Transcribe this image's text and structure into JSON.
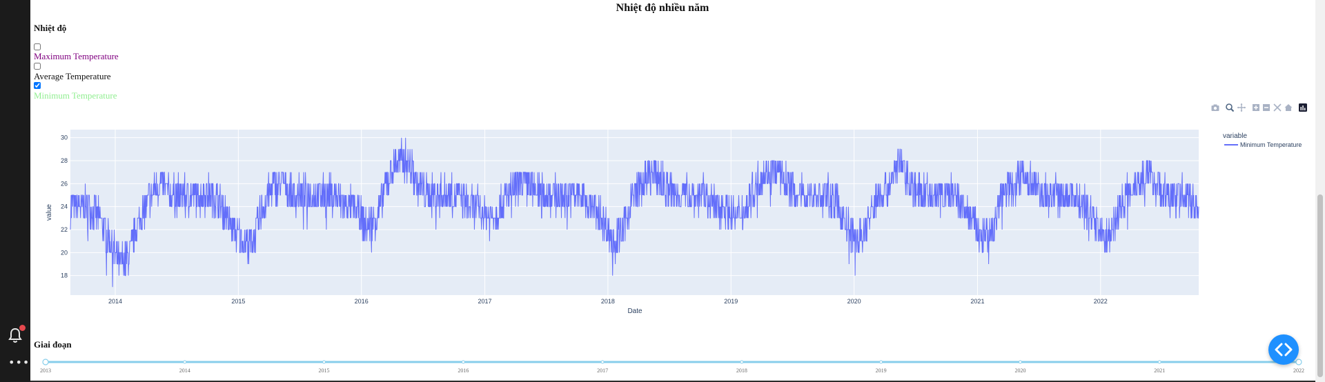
{
  "page": {
    "title": "Nhiệt độ nhiều năm"
  },
  "filters": {
    "heading": "Nhiệt độ",
    "options": [
      {
        "label": "Maximum Temperature",
        "checked": false,
        "color": "#800080"
      },
      {
        "label": "Average Temperature",
        "checked": false,
        "color": "#111111"
      },
      {
        "label": "Minimum Temperature",
        "checked": true,
        "color": "#90ee90"
      }
    ]
  },
  "modebar": {
    "icons": [
      "camera-icon",
      "zoom-icon",
      "pan-icon",
      "zoom-in-icon",
      "zoom-out-icon",
      "autoscale-icon",
      "reset-axes-icon",
      "plotly-logo-icon"
    ]
  },
  "chart_data": {
    "type": "line",
    "xlabel": "Date",
    "ylabel": "value",
    "xlim": [
      "2013-08-21",
      "2022-10-19"
    ],
    "ylim": [
      16.3,
      30.7
    ],
    "x_ticks": [
      "2014",
      "2015",
      "2016",
      "2017",
      "2018",
      "2019",
      "2020",
      "2021",
      "2022"
    ],
    "y_ticks": [
      18,
      20,
      22,
      24,
      26,
      28,
      30
    ],
    "legend": {
      "title": "variable",
      "placement": "right"
    },
    "grid": true,
    "series": [
      {
        "name": "Minimum Temperature",
        "color": "#636efa",
        "x_start": "2013-08-21",
        "x_end": "2022-10-19",
        "approx_monthly": [
          [
            "2013-09",
            24
          ],
          [
            "2013-10",
            24
          ],
          [
            "2013-11",
            23
          ],
          [
            "2013-12",
            21
          ],
          [
            "2014-01",
            19
          ],
          [
            "2014-02",
            20
          ],
          [
            "2014-03",
            23
          ],
          [
            "2014-04",
            25
          ],
          [
            "2014-05",
            26
          ],
          [
            "2014-06",
            25
          ],
          [
            "2014-07",
            25
          ],
          [
            "2014-08",
            25
          ],
          [
            "2014-09",
            25
          ],
          [
            "2014-10",
            25
          ],
          [
            "2014-11",
            24
          ],
          [
            "2014-12",
            22
          ],
          [
            "2015-01",
            21
          ],
          [
            "2015-02",
            21
          ],
          [
            "2015-03",
            24
          ],
          [
            "2015-04",
            26
          ],
          [
            "2015-05",
            26
          ],
          [
            "2015-06",
            25
          ],
          [
            "2015-07",
            25
          ],
          [
            "2015-08",
            25
          ],
          [
            "2015-09",
            25
          ],
          [
            "2015-10",
            25
          ],
          [
            "2015-11",
            24
          ],
          [
            "2015-12",
            24
          ],
          [
            "2016-01",
            22
          ],
          [
            "2016-02",
            23
          ],
          [
            "2016-03",
            26
          ],
          [
            "2016-04",
            28
          ],
          [
            "2016-05",
            28
          ],
          [
            "2016-06",
            26
          ],
          [
            "2016-07",
            25
          ],
          [
            "2016-08",
            25
          ],
          [
            "2016-09",
            25
          ],
          [
            "2016-10",
            25
          ],
          [
            "2016-11",
            24
          ],
          [
            "2016-12",
            24
          ],
          [
            "2017-01",
            23
          ],
          [
            "2017-02",
            24
          ],
          [
            "2017-03",
            25
          ],
          [
            "2017-04",
            26
          ],
          [
            "2017-05",
            26
          ],
          [
            "2017-06",
            25
          ],
          [
            "2017-07",
            25
          ],
          [
            "2017-08",
            25
          ],
          [
            "2017-09",
            25
          ],
          [
            "2017-10",
            25
          ],
          [
            "2017-11",
            24
          ],
          [
            "2017-12",
            23
          ],
          [
            "2018-01",
            21
          ],
          [
            "2018-02",
            22
          ],
          [
            "2018-03",
            25
          ],
          [
            "2018-04",
            26
          ],
          [
            "2018-05",
            27
          ],
          [
            "2018-06",
            26
          ],
          [
            "2018-07",
            25
          ],
          [
            "2018-08",
            25
          ],
          [
            "2018-09",
            25
          ],
          [
            "2018-10",
            25
          ],
          [
            "2018-11",
            24
          ],
          [
            "2018-12",
            24
          ],
          [
            "2019-01",
            23
          ],
          [
            "2019-02",
            24
          ],
          [
            "2019-03",
            26
          ],
          [
            "2019-04",
            27
          ],
          [
            "2019-05",
            27
          ],
          [
            "2019-06",
            26
          ],
          [
            "2019-07",
            25
          ],
          [
            "2019-08",
            25
          ],
          [
            "2019-09",
            25
          ],
          [
            "2019-10",
            25
          ],
          [
            "2019-11",
            24
          ],
          [
            "2019-12",
            22
          ],
          [
            "2020-01",
            21
          ],
          [
            "2020-02",
            23
          ],
          [
            "2020-03",
            25
          ],
          [
            "2020-04",
            26
          ],
          [
            "2020-05",
            28
          ],
          [
            "2020-06",
            26
          ],
          [
            "2020-07",
            25
          ],
          [
            "2020-08",
            25
          ],
          [
            "2020-09",
            25
          ],
          [
            "2020-10",
            25
          ],
          [
            "2020-11",
            24
          ],
          [
            "2020-12",
            23
          ],
          [
            "2021-01",
            21
          ],
          [
            "2021-02",
            22
          ],
          [
            "2021-03",
            25
          ],
          [
            "2021-04",
            26
          ],
          [
            "2021-05",
            27
          ],
          [
            "2021-06",
            26
          ],
          [
            "2021-07",
            25
          ],
          [
            "2021-08",
            25
          ],
          [
            "2021-09",
            25
          ],
          [
            "2021-10",
            25
          ],
          [
            "2021-11",
            24
          ],
          [
            "2021-12",
            23
          ],
          [
            "2022-01",
            21
          ],
          [
            "2022-02",
            23
          ],
          [
            "2022-03",
            25
          ],
          [
            "2022-04",
            26
          ],
          [
            "2022-05",
            27
          ],
          [
            "2022-06",
            26
          ],
          [
            "2022-07",
            25
          ],
          [
            "2022-08",
            25
          ],
          [
            "2022-09",
            25
          ],
          [
            "2022-10",
            24
          ]
        ]
      }
    ]
  },
  "period": {
    "heading": "Giai đoạn",
    "slider_labels": [
      "2013",
      "2014",
      "2015",
      "2016",
      "2017",
      "2018",
      "2019",
      "2020",
      "2021",
      "2022"
    ],
    "range": [
      "2013",
      "2022"
    ],
    "track_color": "#87ceeb"
  },
  "colors": {
    "plot_bg": "#e5ecf6",
    "fab": "#1e90ff",
    "sidebar": "#1b1b1b"
  }
}
